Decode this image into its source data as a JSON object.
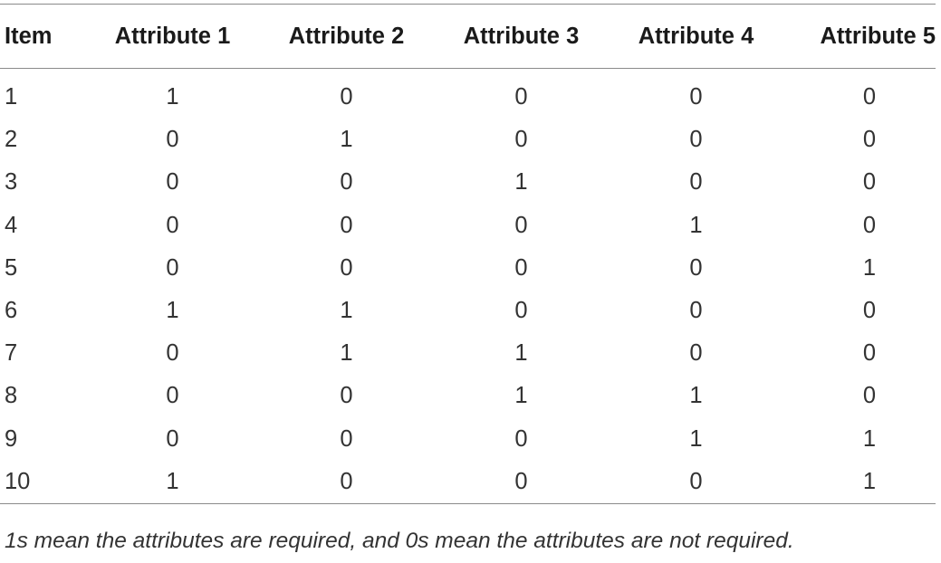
{
  "table": {
    "headers": [
      "Item",
      "Attribute 1",
      "Attribute 2",
      "Attribute 3",
      "Attribute 4",
      "Attribute 5"
    ],
    "rows": [
      [
        "1",
        "1",
        "0",
        "0",
        "0",
        "0"
      ],
      [
        "2",
        "0",
        "1",
        "0",
        "0",
        "0"
      ],
      [
        "3",
        "0",
        "0",
        "1",
        "0",
        "0"
      ],
      [
        "4",
        "0",
        "0",
        "0",
        "1",
        "0"
      ],
      [
        "5",
        "0",
        "0",
        "0",
        "0",
        "1"
      ],
      [
        "6",
        "1",
        "1",
        "0",
        "0",
        "0"
      ],
      [
        "7",
        "0",
        "1",
        "1",
        "0",
        "0"
      ],
      [
        "8",
        "0",
        "0",
        "1",
        "1",
        "0"
      ],
      [
        "9",
        "0",
        "0",
        "0",
        "1",
        "1"
      ],
      [
        "10",
        "1",
        "0",
        "0",
        "0",
        "1"
      ]
    ]
  },
  "footnote": "1s mean the attributes are required, and 0s mean the attributes are not required."
}
